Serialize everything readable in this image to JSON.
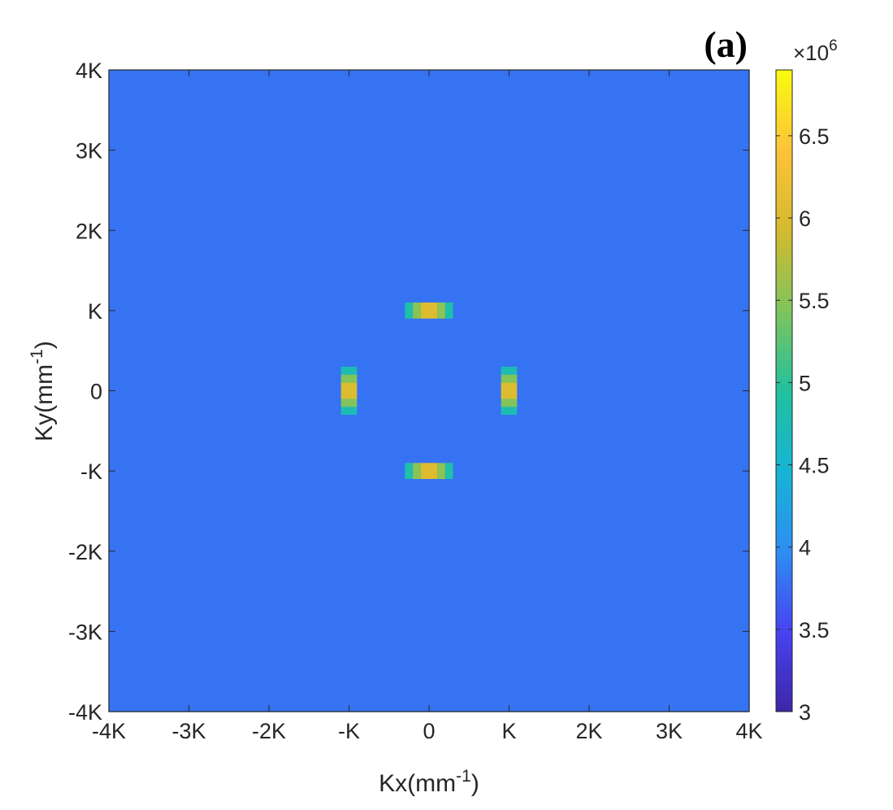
{
  "chart_data": {
    "type": "heatmap",
    "panel_label": "(a)",
    "xlabel": {
      "base": "Kx(mm",
      "sup": "-1",
      "close": ")"
    },
    "ylabel": {
      "base": "Ky(mm",
      "sup": "-1",
      "close": ")"
    },
    "x_ticks": [
      "-4K",
      "-3K",
      "-2K",
      "-K",
      "0",
      "K",
      "2K",
      "3K",
      "4K"
    ],
    "y_ticks": [
      "-4K",
      "-3K",
      "-2K",
      "-K",
      "0",
      "K",
      "2K",
      "3K",
      "4K"
    ],
    "x_range_K": [
      -4,
      4
    ],
    "y_range_K": [
      -4,
      4
    ],
    "grid_resolution": 80,
    "background_value": 3800000,
    "blobs": [
      {
        "label": "top",
        "cx_K": 0,
        "cy_K": 1,
        "sx_K": 0.32,
        "sy_K": 0.11,
        "peak": 6900000
      },
      {
        "label": "bottom",
        "cx_K": 0,
        "cy_K": -1,
        "sx_K": 0.32,
        "sy_K": 0.11,
        "peak": 6900000
      },
      {
        "label": "left",
        "cx_K": -1,
        "cy_K": 0,
        "sx_K": 0.11,
        "sy_K": 0.3,
        "peak": 6900000
      },
      {
        "label": "right",
        "cx_K": 1,
        "cy_K": 0,
        "sx_K": 0.11,
        "sy_K": 0.3,
        "peak": 6900000
      }
    ],
    "colorbar": {
      "min": 3000000,
      "max": 6900000,
      "tick_labels": [
        "3",
        "3.5",
        "4",
        "4.5",
        "5",
        "5.5",
        "6",
        "6.5"
      ],
      "tick_values": [
        3,
        3.5,
        4,
        4.5,
        5,
        5.5,
        6,
        6.5
      ],
      "exponent": {
        "base": "×10",
        "sup": "6"
      }
    },
    "colormap": "parula",
    "colormap_stops": [
      "#3e26a8",
      "#4743f2",
      "#2d8ef3",
      "#16b4d4",
      "#21c19e",
      "#7fc45c",
      "#d4ba2e",
      "#fdc339",
      "#f9fb0e"
    ]
  }
}
